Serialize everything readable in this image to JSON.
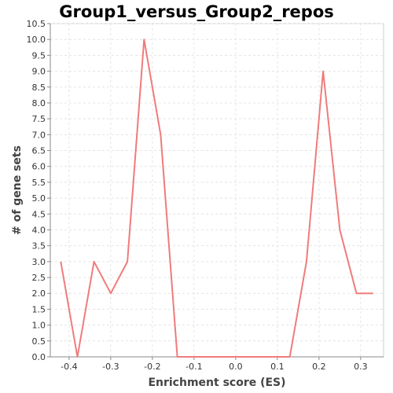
{
  "chart_data": {
    "type": "line",
    "title": "Group1_versus_Group2_repos",
    "xlabel": "Enrichment score (ES)",
    "ylabel": "# of gene sets",
    "xlim": [
      -0.445,
      0.355
    ],
    "ylim": [
      0,
      10.5
    ],
    "x_ticks": [
      -0.4,
      -0.3,
      -0.2,
      -0.1,
      0.0,
      0.1,
      0.2,
      0.3
    ],
    "x_tick_labels": [
      "-0.4",
      "-0.3",
      "-0.2",
      "-0.1",
      "0.0",
      "0.1",
      "0.2",
      "0.3"
    ],
    "y_ticks": [
      0,
      0.5,
      1,
      1.5,
      2,
      2.5,
      3,
      3.5,
      4,
      4.5,
      5,
      5.5,
      6,
      6.5,
      7,
      7.5,
      8,
      8.5,
      9,
      9.5,
      10,
      10.5
    ],
    "y_tick_labels": [
      "0.0",
      "0.5",
      "1.0",
      "1.5",
      "2.0",
      "2.5",
      "3.0",
      "3.5",
      "4.0",
      "4.5",
      "5.0",
      "5.5",
      "6.0",
      "6.5",
      "7.0",
      "7.5",
      "8.0",
      "8.5",
      "9.0",
      "9.5",
      "10.0",
      "10.5"
    ],
    "grid": true,
    "series_color": "#f07b7b",
    "x": [
      -0.42,
      -0.38,
      -0.34,
      -0.3,
      -0.26,
      -0.22,
      -0.18,
      -0.14,
      -0.1,
      -0.06,
      -0.02,
      0.02,
      0.06,
      0.1,
      0.13,
      0.17,
      0.21,
      0.25,
      0.29,
      0.33
    ],
    "y": [
      3,
      0,
      3,
      2,
      3,
      10,
      7,
      0,
      0,
      0,
      0,
      0,
      0,
      0,
      0,
      3,
      9,
      4,
      2,
      2
    ]
  }
}
